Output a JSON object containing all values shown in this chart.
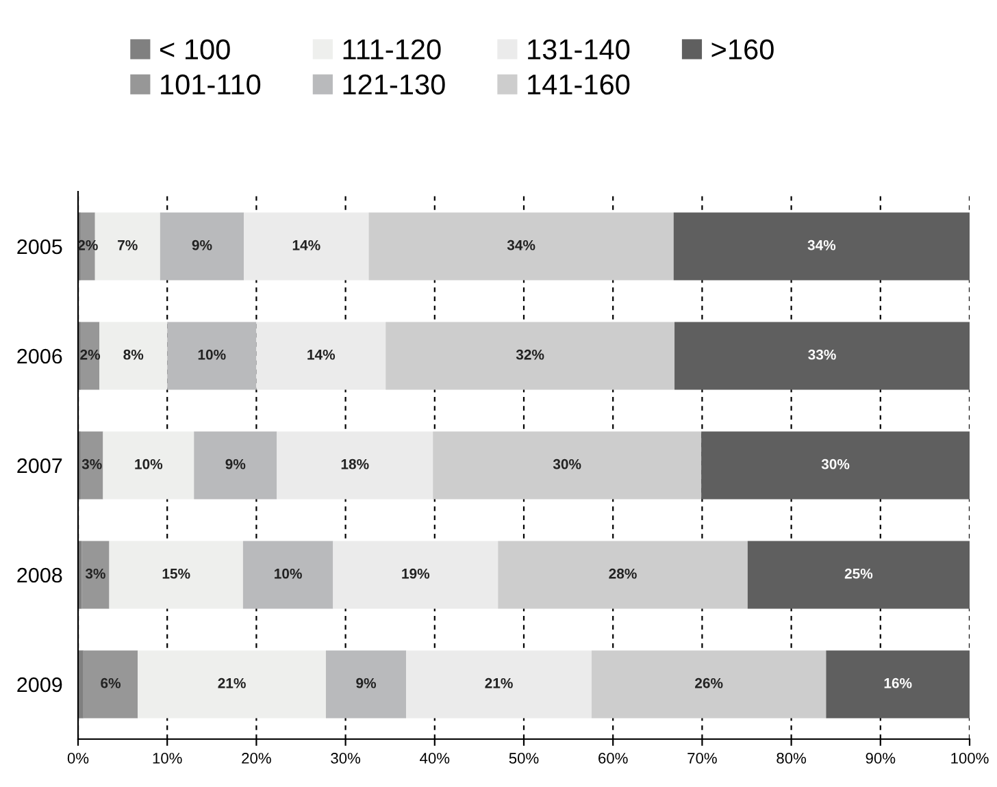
{
  "chart_data": {
    "type": "bar",
    "orientation": "horizontal",
    "stacked": true,
    "categories": [
      "2005",
      "2006",
      "2007",
      "2008",
      "2009"
    ],
    "series": [
      {
        "name": "< 100",
        "color": "#808080",
        "values": [
          0.3,
          0.3,
          0.3,
          0.4,
          0.6
        ],
        "value_labels": [
          null,
          null,
          null,
          null,
          null
        ]
      },
      {
        "name": "101-110",
        "color": "#979797",
        "values": [
          1.6,
          2.1,
          2.5,
          3.1,
          6.1
        ],
        "value_labels": [
          "2%",
          "2%",
          "3%",
          "3%",
          "6%"
        ]
      },
      {
        "name": "111-120",
        "color": "#eeefed",
        "values": [
          7.3,
          7.6,
          10.2,
          15,
          21.1
        ],
        "value_labels": [
          "7%",
          "8%",
          "10%",
          "15%",
          "21%"
        ]
      },
      {
        "name": "121-130",
        "color": "#b9babc",
        "values": [
          9.4,
          10,
          9.3,
          10.1,
          9
        ],
        "value_labels": [
          "9%",
          "10%",
          "9%",
          "10%",
          "9%"
        ]
      },
      {
        "name": "131-140",
        "color": "#ebebeb",
        "values": [
          14,
          14.5,
          17.5,
          18.5,
          20.8
        ],
        "value_labels": [
          "14%",
          "14%",
          "18%",
          "19%",
          "21%"
        ]
      },
      {
        "name": "141-160",
        "color": "#cdcdcd",
        "values": [
          34.2,
          32.4,
          30.1,
          28,
          26.3
        ],
        "value_labels": [
          "34%",
          "32%",
          "30%",
          "28%",
          "26%"
        ]
      },
      {
        "name": ">160",
        "color": "#5f5f5f",
        "values": [
          33.6,
          33.1,
          30.2,
          24.9,
          16.1
        ],
        "value_labels": [
          "34%",
          "33%",
          "30%",
          "25%",
          "16%"
        ]
      }
    ],
    "xlim": [
      0,
      100
    ],
    "xticks": [
      {
        "value": 0,
        "label": "0%"
      },
      {
        "value": 10,
        "label": "10%"
      },
      {
        "value": 20,
        "label": "20%"
      },
      {
        "value": 30,
        "label": "30%"
      },
      {
        "value": 40,
        "label": "40%"
      },
      {
        "value": 50,
        "label": "50%"
      },
      {
        "value": 60,
        "label": "60%"
      },
      {
        "value": 70,
        "label": "70%"
      },
      {
        "value": 80,
        "label": "80%"
      },
      {
        "value": 90,
        "label": "90%"
      },
      {
        "value": 100,
        "label": "100%"
      }
    ],
    "grid": "x",
    "legend": "top"
  }
}
